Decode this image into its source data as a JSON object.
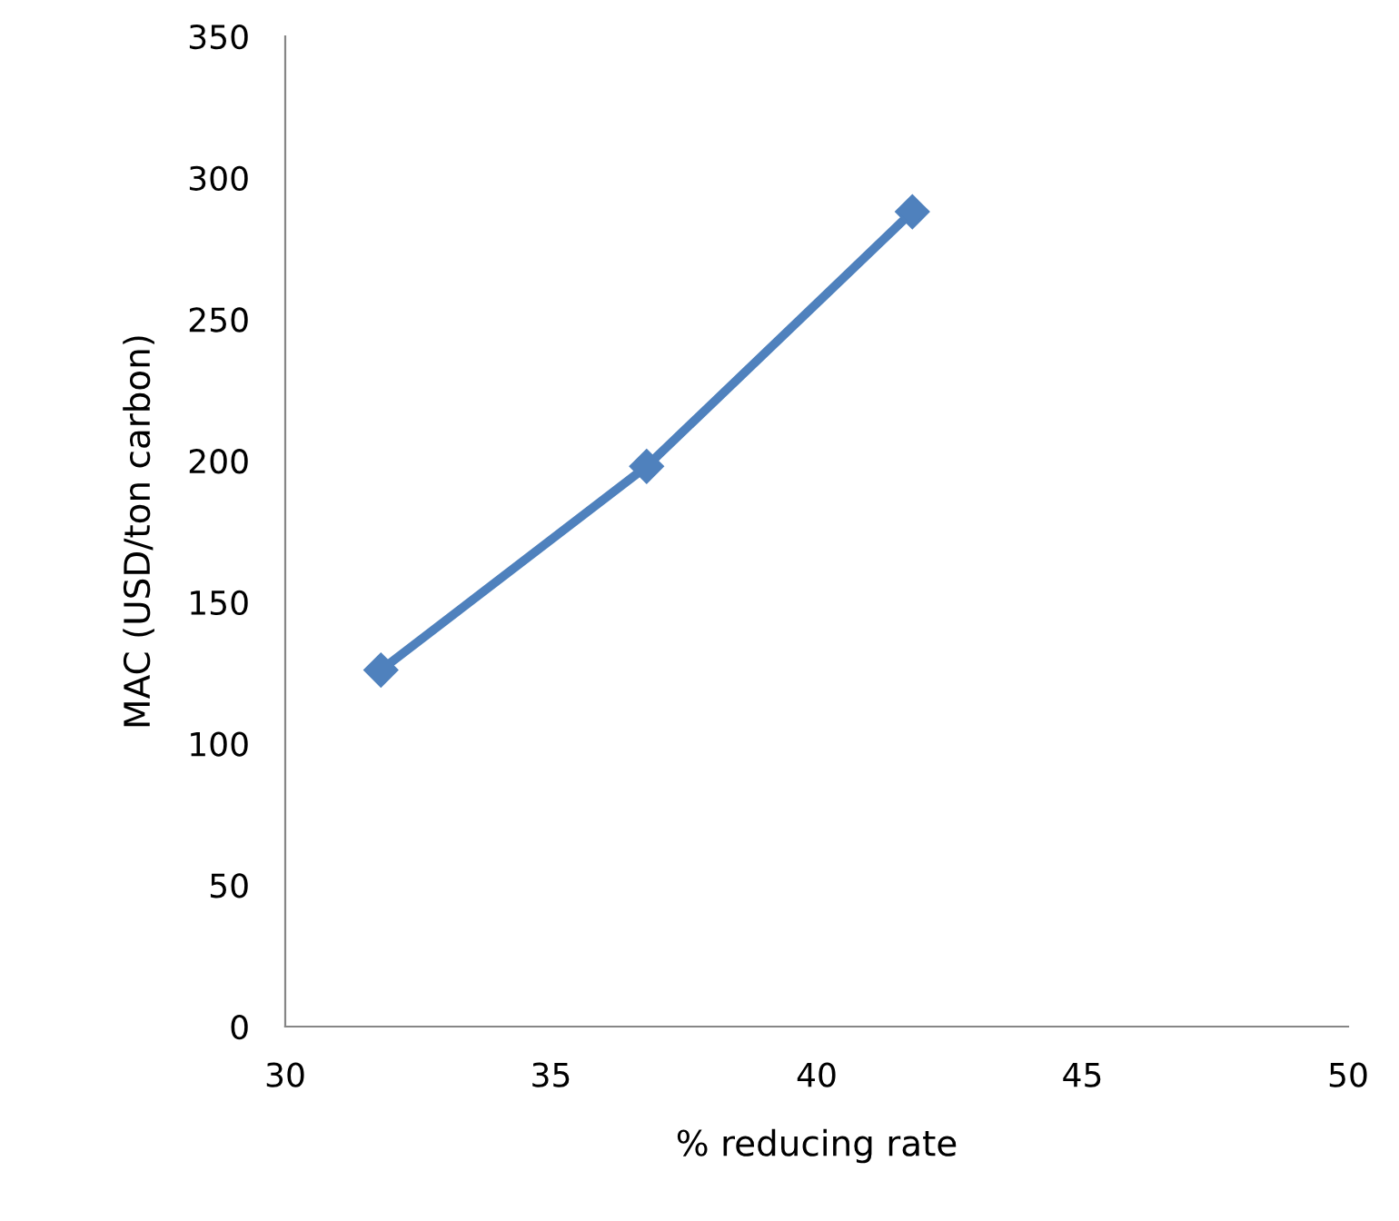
{
  "chart_data": {
    "type": "line",
    "xlabel": "% reducing rate",
    "ylabel": "MAC (USD/ton carbon)",
    "x": [
      31.8,
      36.8,
      41.8
    ],
    "series": [
      {
        "color": "#4f81bd",
        "values": [
          126,
          198,
          288
        ]
      }
    ],
    "xlim": [
      30,
      50
    ],
    "xticks": [
      30,
      35,
      40,
      45,
      50
    ],
    "ylim": [
      0,
      350
    ],
    "yticks": [
      0,
      50,
      100,
      150,
      200,
      250,
      300,
      350
    ],
    "marker": "diamond",
    "line_style": "solid",
    "grid": false,
    "legend": false
  }
}
